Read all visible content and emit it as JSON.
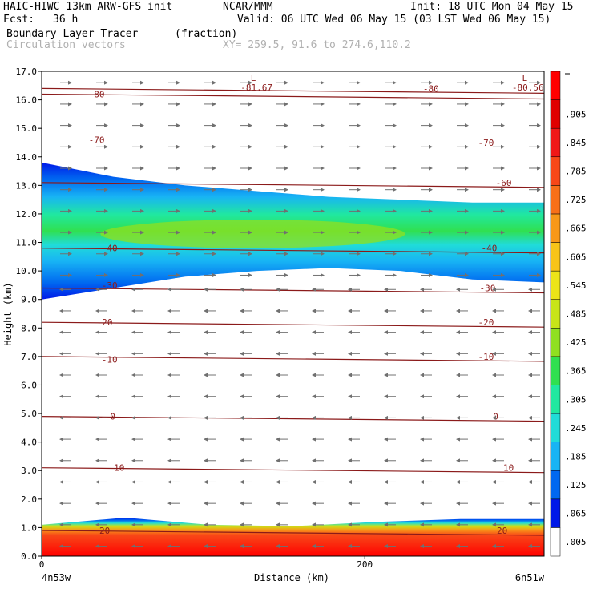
{
  "header": {
    "model": "HAIC-HIWC 13km ARW-GFS init",
    "center": "NCAR/MMM",
    "init": "Init: 18 UTC Mon 04 May 15",
    "fcst_label": "Fcst:",
    "fcst_value": "36 h",
    "valid": "Valid: 06 UTC Wed 06 May 15 (03 LST Wed 06 May 15)",
    "field": "Boundary Layer Tracer",
    "field_units": "(fraction)",
    "vectors": "Circulation vectors",
    "xy": "XY= 259.5, 91.6 to 274.6,110.2"
  },
  "chart_data": {
    "type": "heatmap",
    "title": "Boundary Layer Tracer (fraction)",
    "ylabel": "Height (km)",
    "xlabel": "Distance (km)",
    "x_start_label": "4n53w",
    "x_end_label": "6n51w",
    "xlim": [
      0,
      311
    ],
    "ylim": [
      0,
      17
    ],
    "x_ticks": [
      {
        "value": 0,
        "label": "0"
      },
      {
        "value": 200,
        "label": "200"
      }
    ],
    "y_ticks": [
      "0.0",
      "1.0",
      "2.0",
      "3.0",
      "4.0",
      "5.0",
      "6.0",
      "7.0",
      "8.0",
      "9.0",
      "10.0",
      "11.0",
      "12.0",
      "13.0",
      "14.0",
      "15.0",
      "16.0",
      "17.0"
    ],
    "colorbar": {
      "labels": [
        ".005",
        ".065",
        ".125",
        ".185",
        ".245",
        ".305",
        ".365",
        ".425",
        ".485",
        ".545",
        ".605",
        ".665",
        ".725",
        ".785",
        ".845",
        ".905",
        ""
      ],
      "colors": [
        "#ffffff",
        "#0018e8",
        "#0068f0",
        "#18b4f4",
        "#20dcd8",
        "#20e8a0",
        "#30e050",
        "#90e020",
        "#c8e418",
        "#ece418",
        "#f8c418",
        "#f89818",
        "#f87018",
        "#f84818",
        "#f01818",
        "#e00000",
        "#ff0000"
      ]
    },
    "tracer_layers": [
      {
        "name": "upper",
        "bottom_km": [
          9.0,
          9.4,
          9.8,
          10.0,
          10.1,
          10.0,
          9.7,
          9.6
        ],
        "top_km": [
          13.8,
          13.3,
          13.0,
          12.8,
          12.6,
          12.5,
          12.4,
          12.4
        ],
        "core_km": [
          10.8,
          11.8
        ]
      },
      {
        "name": "boundary-layer",
        "bottom_km": 0.0,
        "top_km": [
          1.1,
          1.35,
          1.1,
          1.05,
          1.2,
          1.3,
          1.3
        ]
      }
    ],
    "temperature_contours_c": [
      {
        "value": "-80",
        "label_x": 34,
        "y": 16.2
      },
      {
        "value": "-70",
        "label_x": 34,
        "y": 14.6
      },
      {
        "value": "-60",
        "label_x": 286,
        "y": 13.1
      },
      {
        "value": "-70",
        "label_x": 275,
        "y": 14.5
      },
      {
        "value": "-80",
        "label_x": 241,
        "y": 16.4
      },
      {
        "value": "-40",
        "label_x": 42,
        "y": 10.8
      },
      {
        "value": "-40",
        "label_x": 277,
        "y": 10.8
      },
      {
        "value": "-30",
        "label_x": 42,
        "y": 9.5
      },
      {
        "value": "-30",
        "label_x": 276,
        "y": 9.4
      },
      {
        "value": "-20",
        "label_x": 39,
        "y": 8.2
      },
      {
        "value": "-20",
        "label_x": 275,
        "y": 8.2
      },
      {
        "value": "-10",
        "label_x": 42,
        "y": 6.9
      },
      {
        "value": "-10",
        "label_x": 275,
        "y": 7.0
      },
      {
        "value": "0",
        "label_x": 44,
        "y": 4.9
      },
      {
        "value": "0",
        "label_x": 281,
        "y": 4.9
      },
      {
        "value": "10",
        "label_x": 48,
        "y": 3.1
      },
      {
        "value": "10",
        "label_x": 289,
        "y": 3.1
      },
      {
        "value": "20",
        "label_x": 39,
        "y": 0.9
      },
      {
        "value": "20",
        "label_x": 285,
        "y": 0.9
      }
    ],
    "lows": [
      {
        "label": "L",
        "value": "-81.67",
        "x": 131,
        "y": 16.5
      },
      {
        "label": "L",
        "value": "-80.56",
        "x": 299,
        "y": 16.5
      }
    ],
    "wind_regimes": [
      {
        "from_km": 9.5,
        "to_km": 17.0,
        "direction": "east"
      },
      {
        "from_km": 0.0,
        "to_km": 9.5,
        "direction": "west"
      }
    ]
  }
}
